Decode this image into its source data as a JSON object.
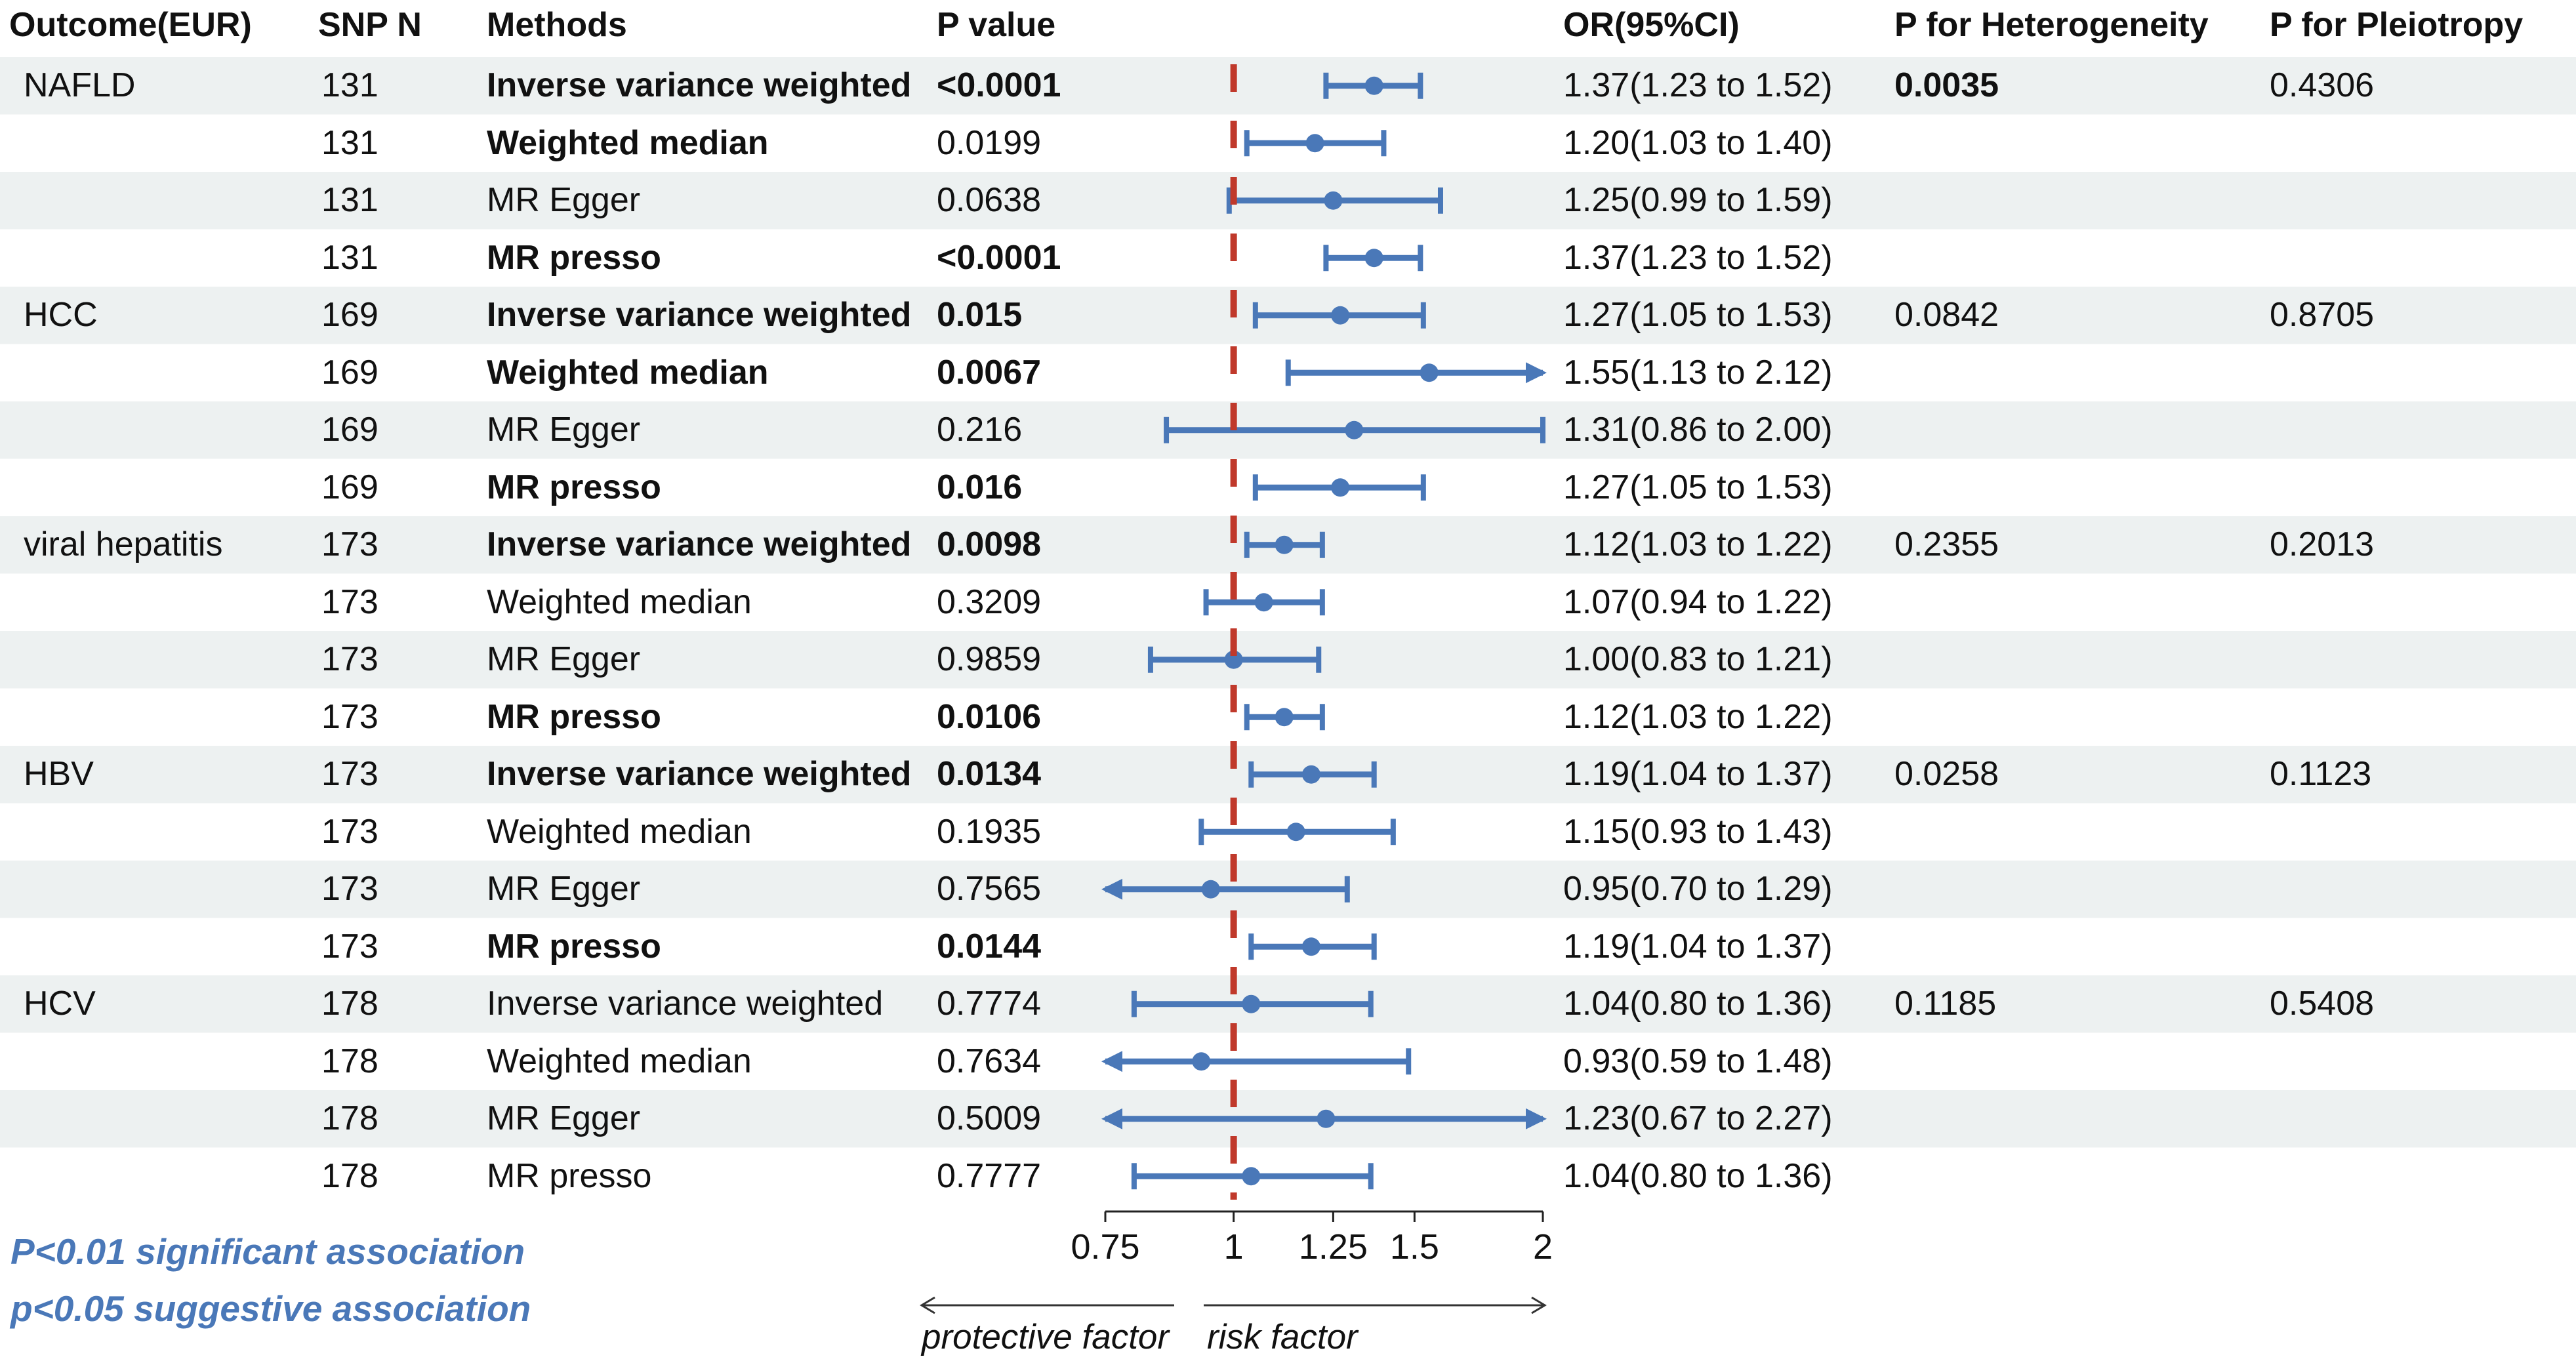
{
  "headers": {
    "outcome": "Outcome(EUR)",
    "snp": "SNP N",
    "methods": "Methods",
    "pvalue": "P value",
    "or": "OR(95%CI)",
    "het": "P for Heterogeneity",
    "pleio": "P for Pleiotropy"
  },
  "rows": [
    {
      "outcome": "NAFLD",
      "snp": "131",
      "method": "Inverse variance weighted",
      "method_bold": true,
      "p": "<0.0001",
      "p_bold": true,
      "or_text": "1.37(1.23 to 1.52)",
      "or": 1.37,
      "lo": 1.23,
      "hi": 1.52,
      "het": "0.0035",
      "het_bold": true,
      "pleio": "0.4306"
    },
    {
      "outcome": "",
      "snp": "131",
      "method": "Weighted median",
      "method_bold": true,
      "p": "0.0199",
      "p_bold": false,
      "or_text": "1.20(1.03 to 1.40)",
      "or": 1.2,
      "lo": 1.03,
      "hi": 1.4,
      "het": "",
      "het_bold": false,
      "pleio": ""
    },
    {
      "outcome": "",
      "snp": "131",
      "method": "MR Egger",
      "method_bold": false,
      "p": "0.0638",
      "p_bold": false,
      "or_text": "1.25(0.99 to 1.59)",
      "or": 1.25,
      "lo": 0.99,
      "hi": 1.59,
      "het": "",
      "het_bold": false,
      "pleio": ""
    },
    {
      "outcome": "",
      "snp": "131",
      "method": "MR presso",
      "method_bold": true,
      "p": "<0.0001",
      "p_bold": true,
      "or_text": "1.37(1.23 to 1.52)",
      "or": 1.37,
      "lo": 1.23,
      "hi": 1.52,
      "het": "",
      "het_bold": false,
      "pleio": ""
    },
    {
      "outcome": "HCC",
      "snp": "169",
      "method": "Inverse variance weighted",
      "method_bold": true,
      "p": "0.015",
      "p_bold": true,
      "or_text": "1.27(1.05 to 1.53)",
      "or": 1.27,
      "lo": 1.05,
      "hi": 1.53,
      "het": "0.0842",
      "het_bold": false,
      "pleio": "0.8705"
    },
    {
      "outcome": "",
      "snp": "169",
      "method": "Weighted median",
      "method_bold": true,
      "p": "0.0067",
      "p_bold": true,
      "or_text": "1.55(1.13 to 2.12)",
      "or": 1.55,
      "lo": 1.13,
      "hi": 2.12,
      "het": "",
      "het_bold": false,
      "pleio": ""
    },
    {
      "outcome": "",
      "snp": "169",
      "method": "MR Egger",
      "method_bold": false,
      "p": "0.216",
      "p_bold": false,
      "or_text": "1.31(0.86 to 2.00)",
      "or": 1.31,
      "lo": 0.86,
      "hi": 2.0,
      "het": "",
      "het_bold": false,
      "pleio": ""
    },
    {
      "outcome": "",
      "snp": "169",
      "method": "MR presso",
      "method_bold": true,
      "p": "0.016",
      "p_bold": true,
      "or_text": "1.27(1.05 to 1.53)",
      "or": 1.27,
      "lo": 1.05,
      "hi": 1.53,
      "het": "",
      "het_bold": false,
      "pleio": ""
    },
    {
      "outcome": "viral hepatitis",
      "snp": "173",
      "method": "Inverse variance weighted",
      "method_bold": true,
      "p": "0.0098",
      "p_bold": true,
      "or_text": "1.12(1.03 to 1.22)",
      "or": 1.12,
      "lo": 1.03,
      "hi": 1.22,
      "het": "0.2355",
      "het_bold": false,
      "pleio": "0.2013"
    },
    {
      "outcome": "",
      "snp": "173",
      "method": "Weighted median",
      "method_bold": false,
      "p": "0.3209",
      "p_bold": false,
      "or_text": "1.07(0.94 to 1.22)",
      "or": 1.07,
      "lo": 0.94,
      "hi": 1.22,
      "het": "",
      "het_bold": false,
      "pleio": ""
    },
    {
      "outcome": "",
      "snp": "173",
      "method": "MR Egger",
      "method_bold": false,
      "p": "0.9859",
      "p_bold": false,
      "or_text": "1.00(0.83 to 1.21)",
      "or": 1.0,
      "lo": 0.83,
      "hi": 1.21,
      "het": "",
      "het_bold": false,
      "pleio": ""
    },
    {
      "outcome": "",
      "snp": "173",
      "method": "MR presso",
      "method_bold": true,
      "p": "0.0106",
      "p_bold": true,
      "or_text": "1.12(1.03 to 1.22)",
      "or": 1.12,
      "lo": 1.03,
      "hi": 1.22,
      "het": "",
      "het_bold": false,
      "pleio": ""
    },
    {
      "outcome": "HBV",
      "snp": "173",
      "method": "Inverse variance weighted",
      "method_bold": true,
      "p": "0.0134",
      "p_bold": true,
      "or_text": "1.19(1.04 to 1.37)",
      "or": 1.19,
      "lo": 1.04,
      "hi": 1.37,
      "het": "0.0258",
      "het_bold": false,
      "pleio": "0.1123"
    },
    {
      "outcome": "",
      "snp": "173",
      "method": "Weighted median",
      "method_bold": false,
      "p": "0.1935",
      "p_bold": false,
      "or_text": "1.15(0.93 to 1.43)",
      "or": 1.15,
      "lo": 0.93,
      "hi": 1.43,
      "het": "",
      "het_bold": false,
      "pleio": ""
    },
    {
      "outcome": "",
      "snp": "173",
      "method": "MR Egger",
      "method_bold": false,
      "p": "0.7565",
      "p_bold": false,
      "or_text": "0.95(0.70 to 1.29)",
      "or": 0.95,
      "lo": 0.7,
      "hi": 1.29,
      "het": "",
      "het_bold": false,
      "pleio": ""
    },
    {
      "outcome": "",
      "snp": "173",
      "method": "MR presso",
      "method_bold": true,
      "p": "0.0144",
      "p_bold": true,
      "or_text": "1.19(1.04 to 1.37)",
      "or": 1.19,
      "lo": 1.04,
      "hi": 1.37,
      "het": "",
      "het_bold": false,
      "pleio": ""
    },
    {
      "outcome": "HCV",
      "snp": "178",
      "method": "Inverse variance weighted",
      "method_bold": false,
      "p": "0.7774",
      "p_bold": false,
      "or_text": "1.04(0.80 to 1.36)",
      "or": 1.04,
      "lo": 0.8,
      "hi": 1.36,
      "het": "0.1185",
      "het_bold": false,
      "pleio": "0.5408"
    },
    {
      "outcome": "",
      "snp": "178",
      "method": "Weighted median",
      "method_bold": false,
      "p": "0.7634",
      "p_bold": false,
      "or_text": "0.93(0.59 to 1.48)",
      "or": 0.93,
      "lo": 0.59,
      "hi": 1.48,
      "het": "",
      "het_bold": false,
      "pleio": ""
    },
    {
      "outcome": "",
      "snp": "178",
      "method": "MR Egger",
      "method_bold": false,
      "p": "0.5009",
      "p_bold": false,
      "or_text": "1.23(0.67 to 2.27)",
      "or": 1.23,
      "lo": 0.67,
      "hi": 2.27,
      "het": "",
      "het_bold": false,
      "pleio": ""
    },
    {
      "outcome": "",
      "snp": "178",
      "method": "MR presso",
      "method_bold": false,
      "p": "0.7777",
      "p_bold": false,
      "or_text": "1.04(0.80 to 1.36)",
      "or": 1.04,
      "lo": 0.8,
      "hi": 1.36,
      "het": "",
      "het_bold": false,
      "pleio": ""
    }
  ],
  "chart_data": {
    "type": "forest",
    "xscale": "log",
    "xlim": [
      0.75,
      2
    ],
    "clip_arrow_labels": "arrowheads drawn where CI exceeds axis range",
    "ticks": [
      0.75,
      1,
      1.25,
      1.5,
      2
    ],
    "tick_labels": [
      "0.75",
      "1",
      "1.25",
      "1.5",
      "2"
    ],
    "reference_line": 1,
    "xlabel_left": "protective factor",
    "xlabel_right": "risk factor"
  },
  "legend": {
    "line1": "P<0.01 significant association",
    "line2": "p<0.05 suggestive association"
  },
  "colors": {
    "stripe": "#edf1f1",
    "point": "#4a78b8",
    "refline": "#c0392b",
    "legend": "#4a78b8"
  }
}
